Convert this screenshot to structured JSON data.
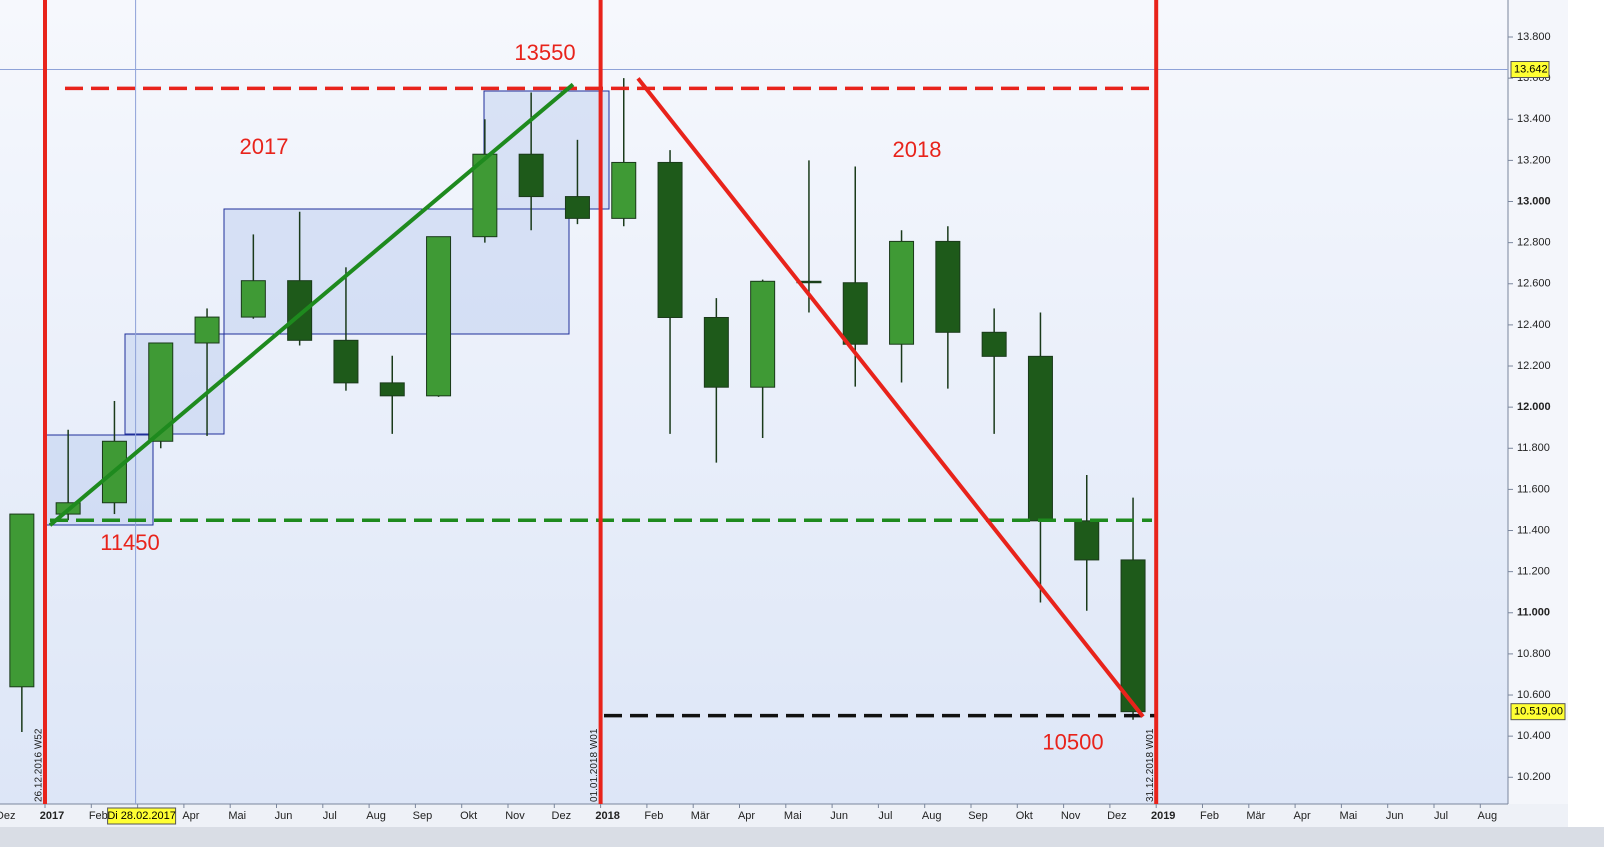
{
  "chart_data": {
    "type": "candlestick",
    "categories": [
      "Dez",
      "2017",
      "Feb",
      null,
      "Apr",
      "Mai",
      "Jun",
      "Jul",
      "Aug",
      "Sep",
      "Okt",
      "Nov",
      "Dez",
      "2018",
      "Feb",
      "Mär",
      "Apr",
      "Mai",
      "Jun",
      "Jul",
      "Aug",
      "Sep",
      "Okt",
      "Nov",
      "Dez",
      "2019",
      "Feb",
      "Mär",
      "Apr",
      "Mai",
      "Jun",
      "Jul",
      "Aug"
    ],
    "open": [
      10640,
      11480,
      11535,
      11834,
      12312,
      12438,
      12615,
      12325,
      12118,
      12055,
      12829,
      13230,
      13024,
      12918,
      13190,
      12436,
      12097,
      12612,
      12605,
      12306,
      12806,
      12364,
      12247,
      11447,
      11257,
      null,
      null,
      null,
      null,
      null,
      null,
      null,
      null
    ],
    "high": [
      11480,
      11890,
      12030,
      12310,
      12480,
      12840,
      12950,
      12680,
      12250,
      12830,
      13400,
      13530,
      13300,
      13600,
      13250,
      12530,
      12620,
      13200,
      13170,
      12860,
      12880,
      12480,
      12460,
      11670,
      11560,
      null,
      null,
      null,
      null,
      null,
      null,
      null,
      null
    ],
    "low": [
      10420,
      11450,
      11480,
      11800,
      11860,
      12430,
      12300,
      12080,
      11870,
      12050,
      12800,
      12860,
      12890,
      12880,
      11870,
      11730,
      11850,
      12460,
      12100,
      12120,
      12090,
      11870,
      11050,
      11010,
      10480,
      null,
      null,
      null,
      null,
      null,
      null,
      null,
      null
    ],
    "close": [
      11480,
      11535,
      11834,
      12312,
      12438,
      12615,
      12325,
      12118,
      12055,
      12829,
      13230,
      13024,
      12918,
      13190,
      12436,
      12097,
      12612,
      12605,
      12306,
      12806,
      12364,
      12247,
      11447,
      11257,
      10519,
      null,
      null,
      null,
      null,
      null,
      null,
      null,
      null
    ],
    "up_color": "#3f9a35",
    "down_color": "#1e5a1a",
    "ylim": [
      10070,
      13980
    ],
    "yticks": [
      {
        "value": 10200,
        "label": "10.200"
      },
      {
        "value": 10400,
        "label": "10.400"
      },
      {
        "value": 10600,
        "label": "10.600"
      },
      {
        "value": 10800,
        "label": "10.800"
      },
      {
        "value": 11000,
        "label": "11.000"
      },
      {
        "value": 11200,
        "label": "11.200"
      },
      {
        "value": 11400,
        "label": "11.400"
      },
      {
        "value": 11600,
        "label": "11.600"
      },
      {
        "value": 11800,
        "label": "11.800"
      },
      {
        "value": 12000,
        "label": "12.000"
      },
      {
        "value": 12200,
        "label": "12.200"
      },
      {
        "value": 12400,
        "label": "12.400"
      },
      {
        "value": 12600,
        "label": "12.600"
      },
      {
        "value": 12800,
        "label": "12.800"
      },
      {
        "value": 13000,
        "label": "13.000"
      },
      {
        "value": 13200,
        "label": "13.200"
      },
      {
        "value": 13400,
        "label": "13.400"
      },
      {
        "value": 13600,
        "label": "13.600"
      },
      {
        "value": 13800,
        "label": "13.800"
      }
    ],
    "crosshair": {
      "value": 13642,
      "label": "13.642"
    },
    "crosshair_date": "Di 28.02.2017",
    "last_price": {
      "value": 10519,
      "label": "10.519,00"
    },
    "levels": [
      {
        "value": 13550,
        "label": "13550",
        "color": "#e8231b"
      },
      {
        "value": 11450,
        "label": "11450",
        "color": "#1e8a1e"
      },
      {
        "value": 10500,
        "label": "10500",
        "color": "#111111"
      }
    ],
    "annotations": [
      "2017",
      "2018"
    ],
    "year_markers": [
      "26.12.2016 W52",
      "01.01.2018 W01",
      "31.12.2018 W01"
    ]
  }
}
